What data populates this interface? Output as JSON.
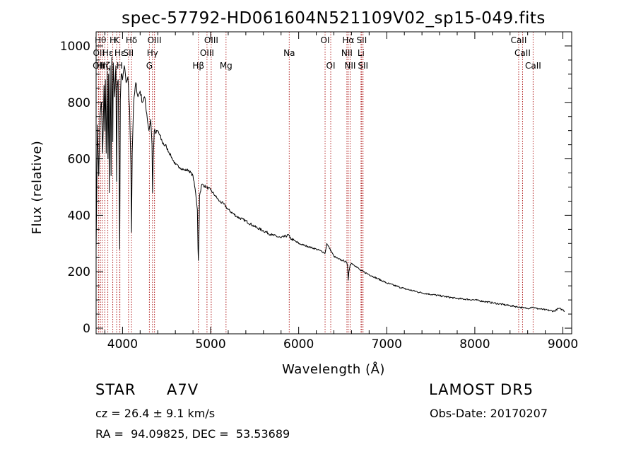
{
  "chart_data": {
    "type": "line",
    "title": "spec-57792-HD061604N521109V02_sp15-049.fits",
    "xlabel": "Wavelength (Å)",
    "ylabel": "Flux (relative)",
    "xlim": [
      3700,
      9100
    ],
    "ylim": [
      -20,
      1050
    ],
    "xticks": [
      4000,
      5000,
      6000,
      7000,
      8000,
      9000
    ],
    "yticks": [
      0,
      200,
      400,
      600,
      800,
      1000
    ],
    "grid": false,
    "colors": {
      "spectrum": "#000000",
      "lines": "#b22222",
      "labels": "#000000"
    },
    "spectrum": {
      "x": [
        3700,
        3715,
        3730,
        3745,
        3760,
        3775,
        3790,
        3798,
        3805,
        3815,
        3825,
        3835,
        3842,
        3850,
        3860,
        3870,
        3878,
        3885,
        3889,
        3895,
        3910,
        3925,
        3933,
        3940,
        3950,
        3960,
        3968,
        3975,
        3985,
        4000,
        4020,
        4040,
        4060,
        4080,
        4095,
        4102,
        4110,
        4125,
        4150,
        4175,
        4200,
        4225,
        4250,
        4275,
        4300,
        4320,
        4335,
        4341,
        4348,
        4360,
        4380,
        4400,
        4450,
        4500,
        4550,
        4600,
        4650,
        4700,
        4750,
        4800,
        4830,
        4850,
        4857,
        4861,
        4866,
        4875,
        4900,
        4950,
        5000,
        5050,
        5100,
        5150,
        5200,
        5300,
        5400,
        5500,
        5600,
        5700,
        5800,
        5890,
        5900,
        5950,
        6000,
        6100,
        6200,
        6280,
        6300,
        6320,
        6400,
        6450,
        6500,
        6540,
        6555,
        6563,
        6570,
        6585,
        6600,
        6650,
        6700,
        6800,
        6900,
        7000,
        7200,
        7400,
        7600,
        7800,
        8000,
        8200,
        8400,
        8500,
        8550,
        8600,
        8650,
        8700,
        8800,
        8900,
        8950,
        9000,
        9020
      ],
      "y": [
        280,
        720,
        540,
        760,
        800,
        620,
        860,
        700,
        880,
        620,
        910,
        600,
        900,
        480,
        930,
        540,
        960,
        800,
        660,
        940,
        820,
        930,
        520,
        850,
        880,
        610,
        280,
        810,
        900,
        880,
        930,
        870,
        890,
        780,
        580,
        340,
        620,
        790,
        870,
        820,
        840,
        800,
        820,
        760,
        700,
        740,
        650,
        480,
        600,
        700,
        690,
        700,
        660,
        640,
        610,
        580,
        570,
        560,
        560,
        540,
        480,
        420,
        280,
        240,
        300,
        470,
        510,
        500,
        490,
        470,
        450,
        440,
        420,
        395,
        380,
        360,
        345,
        330,
        320,
        330,
        320,
        310,
        300,
        290,
        280,
        270,
        265,
        300,
        255,
        245,
        240,
        235,
        220,
        170,
        200,
        225,
        230,
        220,
        205,
        190,
        175,
        160,
        140,
        125,
        115,
        105,
        100,
        90,
        80,
        75,
        72,
        70,
        75,
        70,
        65,
        60,
        70,
        65,
        60
      ]
    },
    "lines": [
      {
        "wl": 3727,
        "label": "OII",
        "row": 2
      },
      {
        "wl": 3730,
        "label": "OII",
        "row": 1
      },
      {
        "wl": 3750,
        "label": "Hθ",
        "row": 0
      },
      {
        "wl": 3770,
        "label": "Hη",
        "row": 2
      },
      {
        "wl": 3798,
        "label": "Hζ",
        "row": 2
      },
      {
        "wl": 3833,
        "label": "Hε",
        "row": 1
      },
      {
        "wl": 3889,
        "label": "H",
        "row": 0
      },
      {
        "wl": 3933,
        "label": "K",
        "row": 0
      },
      {
        "wl": 3968,
        "label": "H",
        "row": 2
      },
      {
        "wl": 3970,
        "label": "Hε",
        "row": 1
      },
      {
        "wl": 4068,
        "label": "SII",
        "row": 1
      },
      {
        "wl": 4102,
        "label": "Hδ",
        "row": 0
      },
      {
        "wl": 4305,
        "label": "G",
        "row": 2
      },
      {
        "wl": 4340,
        "label": "Hγ",
        "row": 1
      },
      {
        "wl": 4363,
        "label": "OIII",
        "row": 0
      },
      {
        "wl": 4861,
        "label": "Hβ",
        "row": 2
      },
      {
        "wl": 4959,
        "label": "OIII",
        "row": 1
      },
      {
        "wl": 5007,
        "label": "OIII",
        "row": 0
      },
      {
        "wl": 5175,
        "label": "Mg",
        "row": 2
      },
      {
        "wl": 5893,
        "label": "Na",
        "row": 1
      },
      {
        "wl": 6300,
        "label": "OI",
        "row": 0
      },
      {
        "wl": 6364,
        "label": "OI",
        "row": 2
      },
      {
        "wl": 6548,
        "label": "NII",
        "row": 1
      },
      {
        "wl": 6563,
        "label": "Hα",
        "row": 0
      },
      {
        "wl": 6584,
        "label": "NII",
        "row": 2
      },
      {
        "wl": 6708,
        "label": "Li",
        "row": 1
      },
      {
        "wl": 6716,
        "label": "SII",
        "row": 0
      },
      {
        "wl": 6731,
        "label": "SII",
        "row": 2
      },
      {
        "wl": 8498,
        "label": "CaII",
        "row": 0
      },
      {
        "wl": 8542,
        "label": "CaII",
        "row": 1
      },
      {
        "wl": 8662,
        "label": "CaII",
        "row": 2
      }
    ]
  },
  "info": {
    "object_type": "STAR",
    "subclass": "A7V",
    "survey": "LAMOST DR5",
    "cz": "cz = 26.4 ± 9.1 km/s",
    "obs_date": "Obs-Date: 20170207",
    "coords": "RA =  94.09825, DEC =  53.53689"
  }
}
